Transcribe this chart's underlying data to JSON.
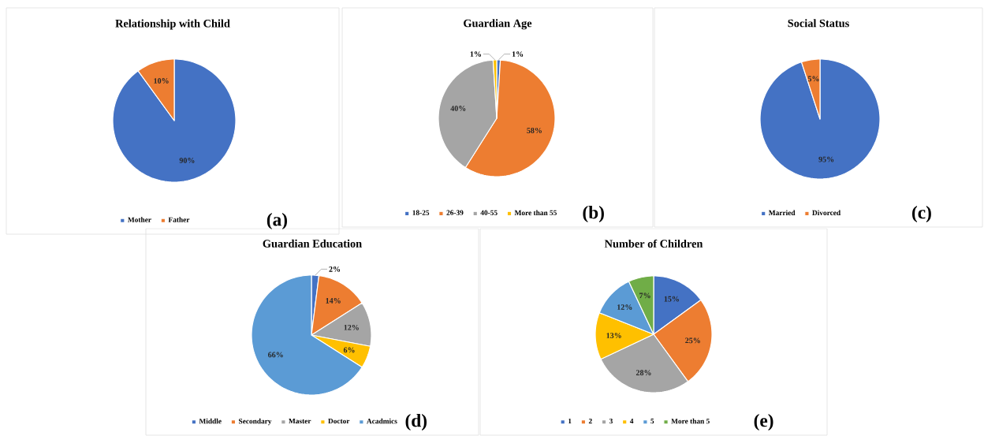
{
  "chart_data": [
    {
      "type": "pie",
      "title": "Relationship with Child",
      "categories": [
        "Mother",
        "Father"
      ],
      "values": [
        90,
        10
      ],
      "colors": [
        "#4472c4",
        "#ed7d31"
      ],
      "value_labels": [
        "90%",
        "10%"
      ],
      "legend": "bottom",
      "annotations": [
        "(a)"
      ]
    },
    {
      "type": "pie",
      "title": "Guardian Age",
      "categories": [
        "18-25",
        "26-39",
        "40-55",
        "More than 55"
      ],
      "values": [
        1,
        58,
        40,
        1
      ],
      "colors": [
        "#4472c4",
        "#ed7d31",
        "#a5a5a5",
        "#ffc000"
      ],
      "value_labels": [
        "1%",
        "58%",
        "40%",
        "1%"
      ],
      "legend": "bottom",
      "annotations": [
        "(b)"
      ]
    },
    {
      "type": "pie",
      "title": "Social Status",
      "categories": [
        "Married",
        "Divorced"
      ],
      "values": [
        95,
        5
      ],
      "colors": [
        "#4472c4",
        "#ed7d31"
      ],
      "value_labels": [
        "95%",
        "5%"
      ],
      "legend": "bottom",
      "annotations": [
        "(c)"
      ]
    },
    {
      "type": "pie",
      "title": "Guardian Education",
      "categories": [
        "Middle",
        "Secondary",
        "Master",
        "Doctor",
        "Acadmics"
      ],
      "values": [
        2,
        14,
        12,
        6,
        66
      ],
      "colors": [
        "#4472c4",
        "#ed7d31",
        "#a5a5a5",
        "#ffc000",
        "#5b9bd5"
      ],
      "value_labels": [
        "2%",
        "14%",
        "12%",
        "6%",
        "66%"
      ],
      "legend": "bottom",
      "annotations": [
        "(d)"
      ]
    },
    {
      "type": "pie",
      "title": "Number of Children",
      "categories": [
        "1",
        "2",
        "3",
        "4",
        "5",
        "More than 5"
      ],
      "values": [
        15,
        25,
        28,
        13,
        12,
        7
      ],
      "colors": [
        "#4472c4",
        "#ed7d31",
        "#a5a5a5",
        "#ffc000",
        "#5b9bd5",
        "#70ad47"
      ],
      "value_labels": [
        "15%",
        "25%",
        "28%",
        "13%",
        "12%",
        "7%"
      ],
      "legend": "bottom",
      "annotations": [
        "(e)"
      ]
    }
  ]
}
